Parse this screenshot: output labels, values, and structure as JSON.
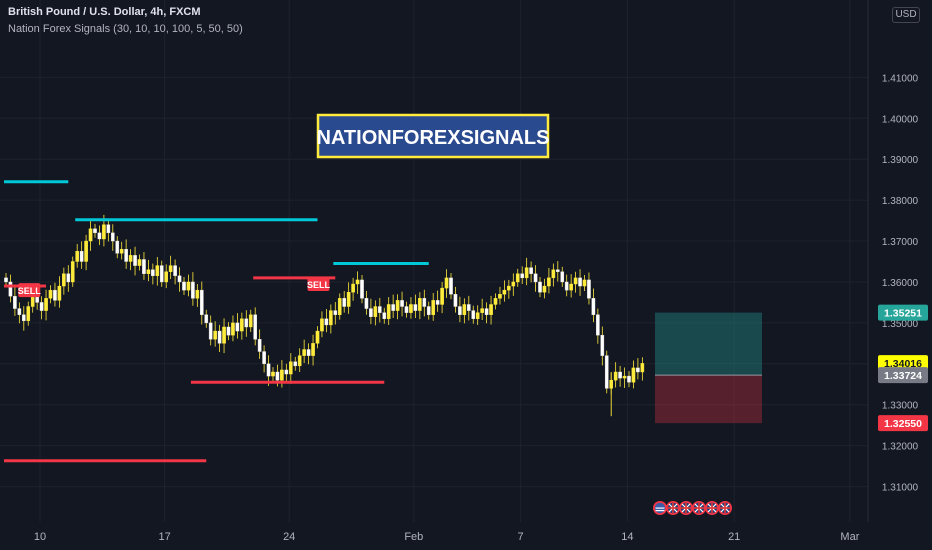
{
  "header": {
    "title": "British Pound / U.S. Dollar, 4h, FXCM",
    "indicator": "Nation Forex Signals  (30, 10, 10, 100, 5, 50, 50)",
    "currency_badge": "USD"
  },
  "watermark": "NATIONFOREXSIGNALS",
  "chart_data": {
    "type": "candlestick",
    "symbol": "GBPUSD",
    "timeframe": "4h",
    "ylim": [
      1.3055,
      1.4245
    ],
    "y_ticks": [
      "1.41000",
      "1.40000",
      "1.39000",
      "1.38000",
      "1.37000",
      "1.36000",
      "1.35000",
      "1.34000",
      "1.33000",
      "1.32000",
      "1.31000"
    ],
    "x_ticks": [
      "10",
      "17",
      "24",
      "Feb",
      "7",
      "14",
      "21",
      "Mar",
      "7",
      "14"
    ],
    "x_tick_index": [
      0,
      28,
      56,
      84,
      108,
      132,
      156,
      182,
      204,
      228
    ],
    "closes": [
      1.36,
      1.3565,
      1.3535,
      1.352,
      1.3505,
      1.354,
      1.3565,
      1.355,
      1.353,
      1.356,
      1.358,
      1.3555,
      1.359,
      1.362,
      1.36,
      1.365,
      1.3675,
      1.365,
      1.37,
      1.373,
      1.372,
      1.3705,
      1.374,
      1.372,
      1.37,
      1.367,
      1.368,
      1.365,
      1.3665,
      1.364,
      1.3655,
      1.362,
      1.363,
      1.3615,
      1.364,
      1.36,
      1.3625,
      1.364,
      1.3615,
      1.36,
      1.358,
      1.36,
      1.356,
      1.358,
      1.352,
      1.35,
      1.346,
      1.348,
      1.345,
      1.349,
      1.347,
      1.35,
      1.348,
      1.351,
      1.349,
      1.352,
      1.346,
      1.343,
      1.34,
      1.337,
      1.338,
      1.336,
      1.3385,
      1.3375,
      1.3405,
      1.3395,
      1.342,
      1.3435,
      1.342,
      1.345,
      1.348,
      1.351,
      1.3495,
      1.353,
      1.352,
      1.356,
      1.354,
      1.3575,
      1.3595,
      1.3605,
      1.356,
      1.3535,
      1.3515,
      1.354,
      1.3525,
      1.351,
      1.3545,
      1.353,
      1.3555,
      1.354,
      1.3525,
      1.3545,
      1.353,
      1.356,
      1.354,
      1.352,
      1.3555,
      1.3545,
      1.3585,
      1.361,
      1.357,
      1.354,
      1.352,
      1.3545,
      1.353,
      1.351,
      1.3525,
      1.3535,
      1.352,
      1.3545,
      1.356,
      1.357,
      1.358,
      1.359,
      1.36,
      1.362,
      1.361,
      1.3635,
      1.362,
      1.36,
      1.3575,
      1.359,
      1.361,
      1.363,
      1.3625,
      1.36,
      1.358,
      1.3595,
      1.361,
      1.359,
      1.3605,
      1.356,
      1.352,
      1.347,
      1.342,
      1.334,
      1.336,
      1.338,
      1.3365,
      1.337,
      1.3355,
      1.339,
      1.338,
      1.3401
    ],
    "levels": [
      {
        "color": "#00c8d7",
        "role": "resistance",
        "y": 1.3845,
        "from": 0,
        "to": 14
      },
      {
        "color": "#00c8d7",
        "role": "resistance",
        "y": 1.3752,
        "from": 16,
        "to": 70
      },
      {
        "color": "#00c8d7",
        "role": "resistance",
        "y": 1.3645,
        "from": 74,
        "to": 95
      },
      {
        "color": "#f23645",
        "role": "support",
        "y": 1.359,
        "from": 0,
        "to": 9
      },
      {
        "color": "#f23645",
        "role": "support",
        "y": 1.361,
        "from": 56,
        "to": 74
      },
      {
        "color": "#f23645",
        "role": "support",
        "y": 1.3355,
        "from": 42,
        "to": 85
      },
      {
        "color": "#f23645",
        "role": "support",
        "y": 1.3163,
        "from": 0,
        "to": 45
      }
    ],
    "sell_signals": [
      {
        "label": "SELL",
        "index": 5,
        "y": 1.358
      },
      {
        "label": "SELL",
        "index": 70,
        "y": 1.3595
      }
    ],
    "position": {
      "entry": 1.33724,
      "target": 1.35251,
      "stop": 1.3255
    },
    "price_labels": [
      {
        "value": "1.35251",
        "color": "#26a69a",
        "text_color": "#ffffff"
      },
      {
        "value": "1.34016",
        "color": "#ffff00",
        "text_color": "#131722"
      },
      {
        "value": "1.33724",
        "color": "#787b86",
        "text_color": "#ffffff"
      },
      {
        "value": "1.32550",
        "color": "#f23645",
        "text_color": "#ffffff"
      }
    ],
    "candle_color": "#ffeb3b",
    "flag_icons": [
      "us-flag-icon",
      "uk-flag-icon",
      "uk-flag-icon",
      "uk-flag-icon",
      "uk-flag-icon",
      "uk-flag-icon"
    ]
  }
}
